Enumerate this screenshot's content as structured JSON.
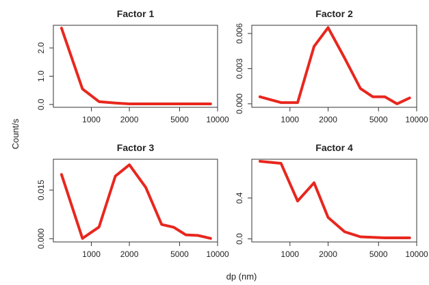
{
  "figure": {
    "ylabel": "Count/s",
    "xlabel": "dp (nm)"
  },
  "chart_data": [
    {
      "type": "line",
      "title": "Factor 1",
      "x_scale": "log",
      "xlim": [
        500,
        10000
      ],
      "x_ticks": [
        1000,
        2000,
        5000,
        10000
      ],
      "x_tick_labels": [
        "1000",
        "2000",
        "5000",
        "10000"
      ],
      "ylim": [
        -0.1,
        2.8
      ],
      "y_ticks": [
        0,
        1,
        2
      ],
      "y_tick_labels": [
        "0.0",
        "1.0",
        "2.0"
      ],
      "line_color": "#e8271e",
      "series": [
        {
          "x": [
            580,
            850,
            1150,
            1550,
            2000,
            2700,
            3600,
            4500,
            5600,
            7000,
            8800
          ],
          "y": [
            2.7,
            0.55,
            0.1,
            0.05,
            0.02,
            0.02,
            0.02,
            0.02,
            0.02,
            0.02,
            0.02
          ]
        }
      ]
    },
    {
      "type": "line",
      "title": "Factor 2",
      "x_scale": "log",
      "xlim": [
        500,
        10000
      ],
      "x_ticks": [
        1000,
        2000,
        5000,
        10000
      ],
      "x_tick_labels": [
        "1000",
        "2000",
        "5000",
        "10000"
      ],
      "ylim": [
        -0.0003,
        0.0067
      ],
      "y_ticks": [
        0,
        0.003,
        0.006
      ],
      "y_tick_labels": [
        "0.000",
        "0.003",
        "0.006"
      ],
      "line_color": "#e8271e",
      "series": [
        {
          "x": [
            580,
            850,
            1150,
            1550,
            2000,
            2700,
            3600,
            4500,
            5600,
            7000,
            8800
          ],
          "y": [
            0.0006,
            0.0001,
            0.0001,
            0.0049,
            0.0065,
            0.0039,
            0.0013,
            0.0006,
            0.0006,
            0.0,
            0.0005
          ]
        }
      ]
    },
    {
      "type": "line",
      "title": "Factor 3",
      "x_scale": "log",
      "xlim": [
        500,
        10000
      ],
      "x_ticks": [
        1000,
        2000,
        5000,
        10000
      ],
      "x_tick_labels": [
        "1000",
        "2000",
        "5000",
        "10000"
      ],
      "ylim": [
        -0.001,
        0.0245
      ],
      "y_ticks": [
        0,
        0.015
      ],
      "y_tick_labels": [
        "0.000",
        "0.015"
      ],
      "line_color": "#e8271e",
      "series": [
        {
          "x": [
            580,
            850,
            1150,
            1550,
            2000,
            2700,
            3600,
            4500,
            5600,
            7000,
            8800
          ],
          "y": [
            0.0198,
            0.0001,
            0.0036,
            0.0193,
            0.0228,
            0.0158,
            0.0044,
            0.0035,
            0.0012,
            0.001,
            0.0001
          ]
        }
      ]
    },
    {
      "type": "line",
      "title": "Factor 4",
      "x_scale": "log",
      "xlim": [
        500,
        10000
      ],
      "x_ticks": [
        1000,
        2000,
        5000,
        10000
      ],
      "x_tick_labels": [
        "1000",
        "2000",
        "5000",
        "10000"
      ],
      "ylim": [
        -0.03,
        0.78
      ],
      "y_ticks": [
        0,
        0.4
      ],
      "y_tick_labels": [
        "0.0",
        "0.4"
      ],
      "line_color": "#e8271e",
      "series": [
        {
          "x": [
            580,
            850,
            1150,
            1550,
            2000,
            2700,
            3600,
            4500,
            5600,
            7000,
            8800
          ],
          "y": [
            0.76,
            0.74,
            0.37,
            0.55,
            0.21,
            0.07,
            0.02,
            0.015,
            0.01,
            0.01,
            0.01
          ]
        }
      ]
    }
  ]
}
